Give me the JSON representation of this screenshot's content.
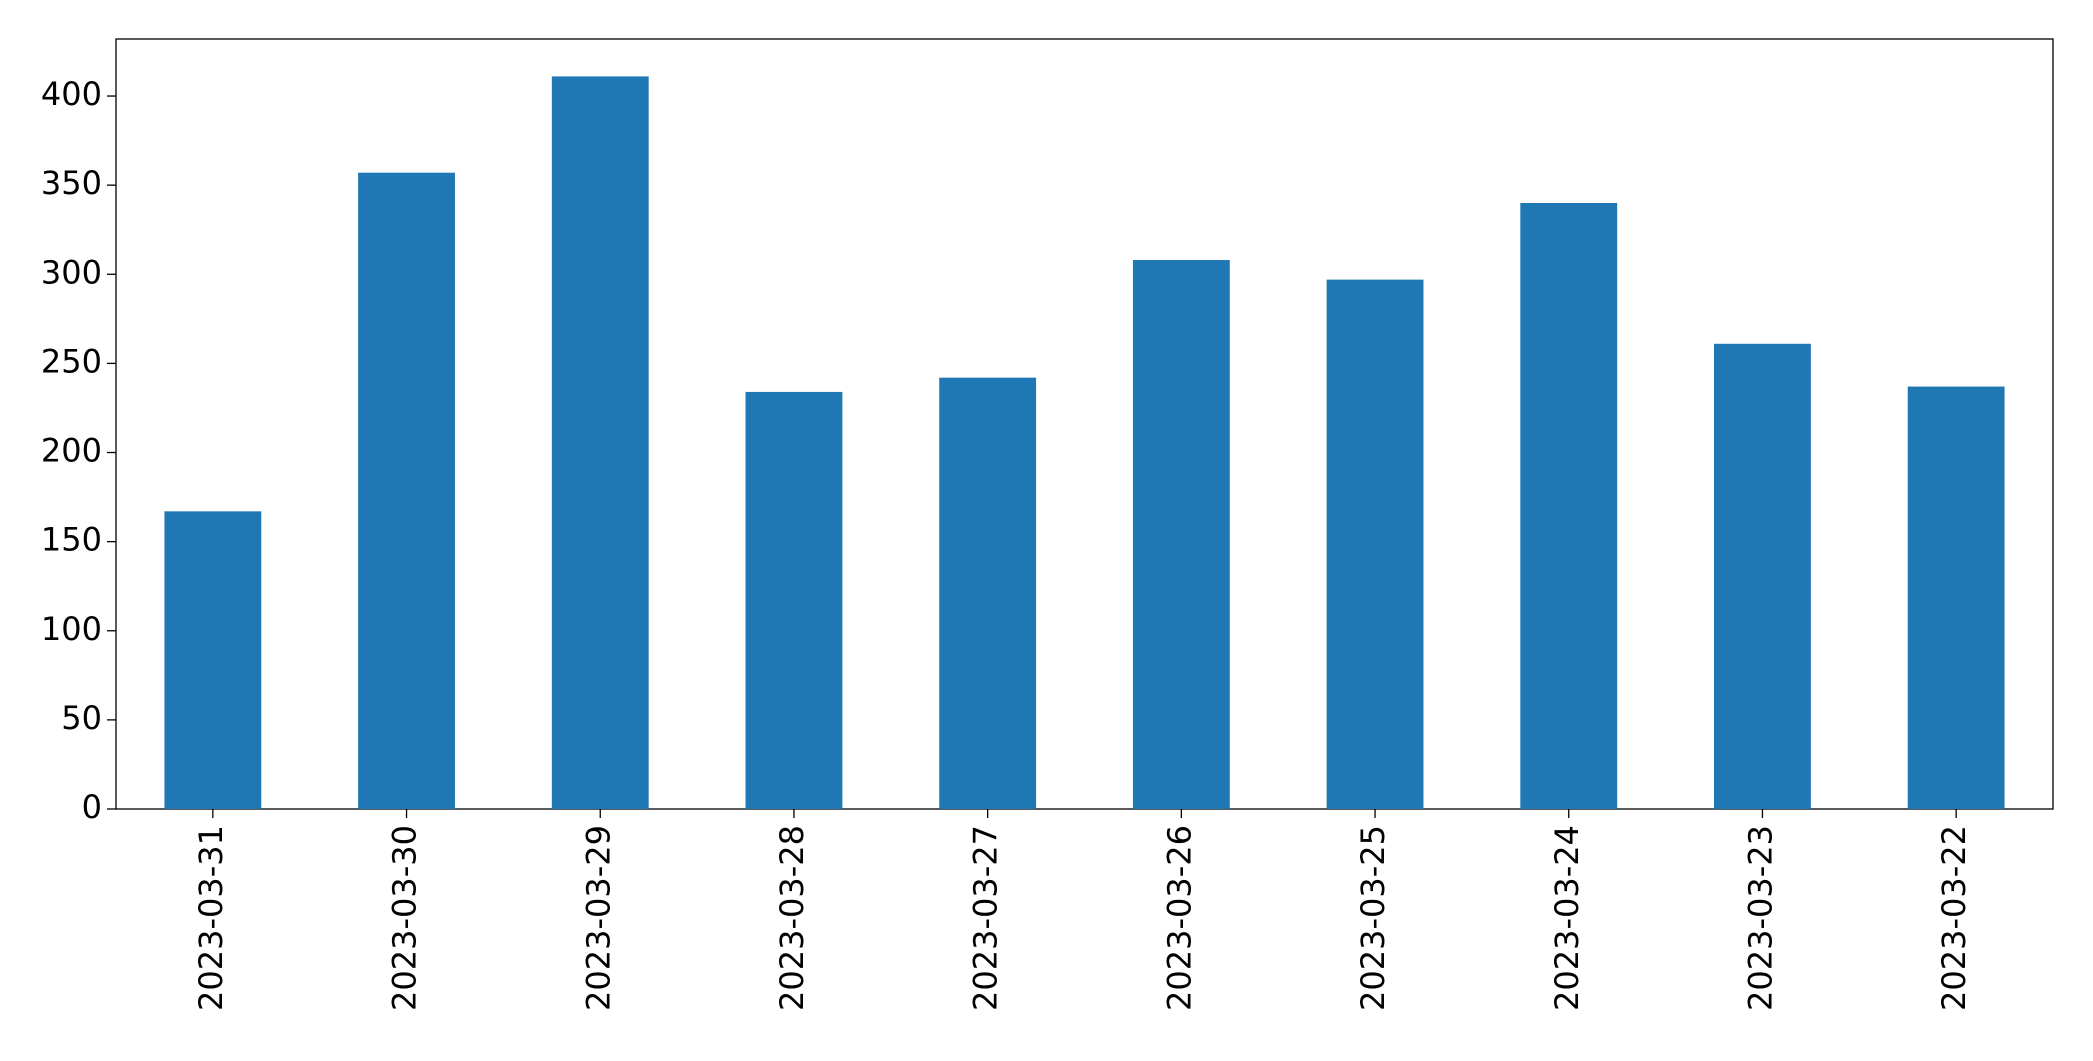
{
  "chart_data": {
    "type": "bar",
    "categories": [
      "2023-03-31",
      "2023-03-30",
      "2023-03-29",
      "2023-03-28",
      "2023-03-27",
      "2023-03-26",
      "2023-03-25",
      "2023-03-24",
      "2023-03-23",
      "2023-03-22"
    ],
    "values": [
      167,
      357,
      411,
      234,
      242,
      308,
      297,
      340,
      261,
      237
    ],
    "color": "#1f77b4",
    "ylim": [
      0,
      432
    ],
    "yticks": [
      0,
      50,
      100,
      150,
      200,
      250,
      300,
      350,
      400
    ],
    "grid": false
  }
}
